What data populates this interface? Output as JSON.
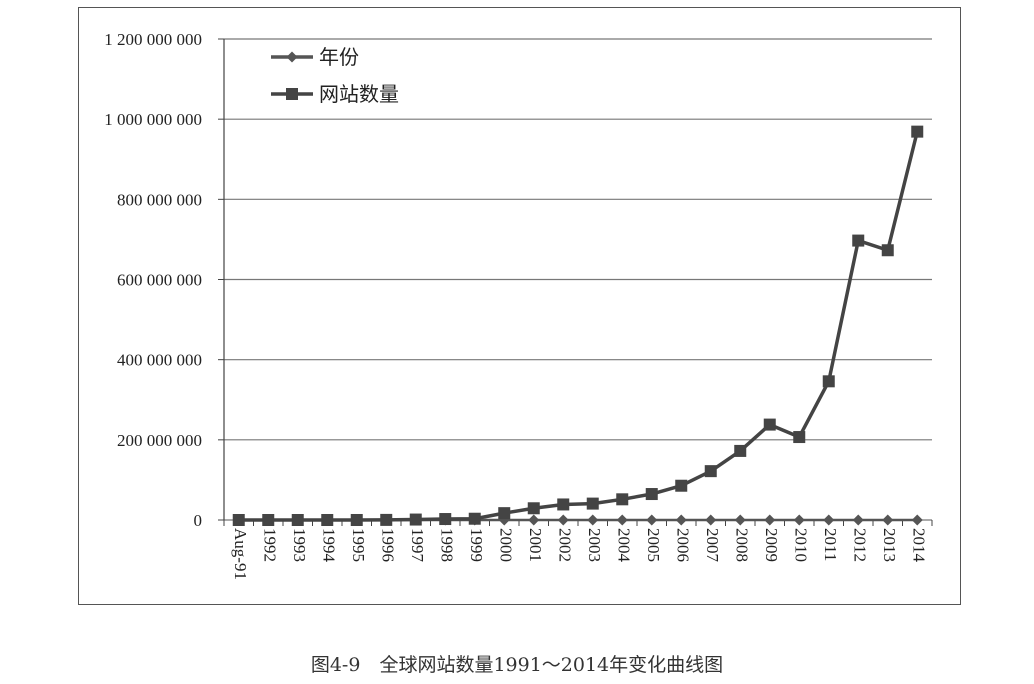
{
  "caption": "图4-9　全球网站数量1991～2014年变化曲线图",
  "chart_data": {
    "type": "line",
    "categories": [
      "Aug-91",
      "1992",
      "1993",
      "1994",
      "1995",
      "1996",
      "1997",
      "1998",
      "1999",
      "2000",
      "2001",
      "2002",
      "2003",
      "2004",
      "2005",
      "2006",
      "2007",
      "2008",
      "2009",
      "2010",
      "2011",
      "2012",
      "2013",
      "2014"
    ],
    "series": [
      {
        "name": "年份",
        "marker": "diamond",
        "color": "#555555",
        "values": [
          1991,
          1992,
          1993,
          1994,
          1995,
          1996,
          1997,
          1998,
          1999,
          2000,
          2001,
          2002,
          2003,
          2004,
          2005,
          2006,
          2007,
          2008,
          2009,
          2010,
          2011,
          2012,
          2013,
          2014
        ]
      },
      {
        "name": "网站数量",
        "marker": "square",
        "color": "#444444",
        "values": [
          1,
          10,
          130,
          2738,
          23500,
          257601,
          1117255,
          2410067,
          3177453,
          17087182,
          29254370,
          38760373,
          40912332,
          51611646,
          64780617,
          85507314,
          121892559,
          172338726,
          238027855,
          206956723,
          346004403,
          697089489,
          672985183,
          968882453
        ]
      }
    ],
    "ylim": [
      0,
      1200000000
    ],
    "yticks": [
      "0",
      "200 000 000",
      "400 000 000",
      "600 000 000",
      "800 000 000",
      "1 000 000 000",
      "1 200 000 000"
    ],
    "ytick_values": [
      0,
      200000000,
      400000000,
      600000000,
      800000000,
      1000000000,
      1200000000
    ],
    "grid": true,
    "legend_position": "top-left",
    "title": "",
    "xlabel": "",
    "ylabel": ""
  }
}
